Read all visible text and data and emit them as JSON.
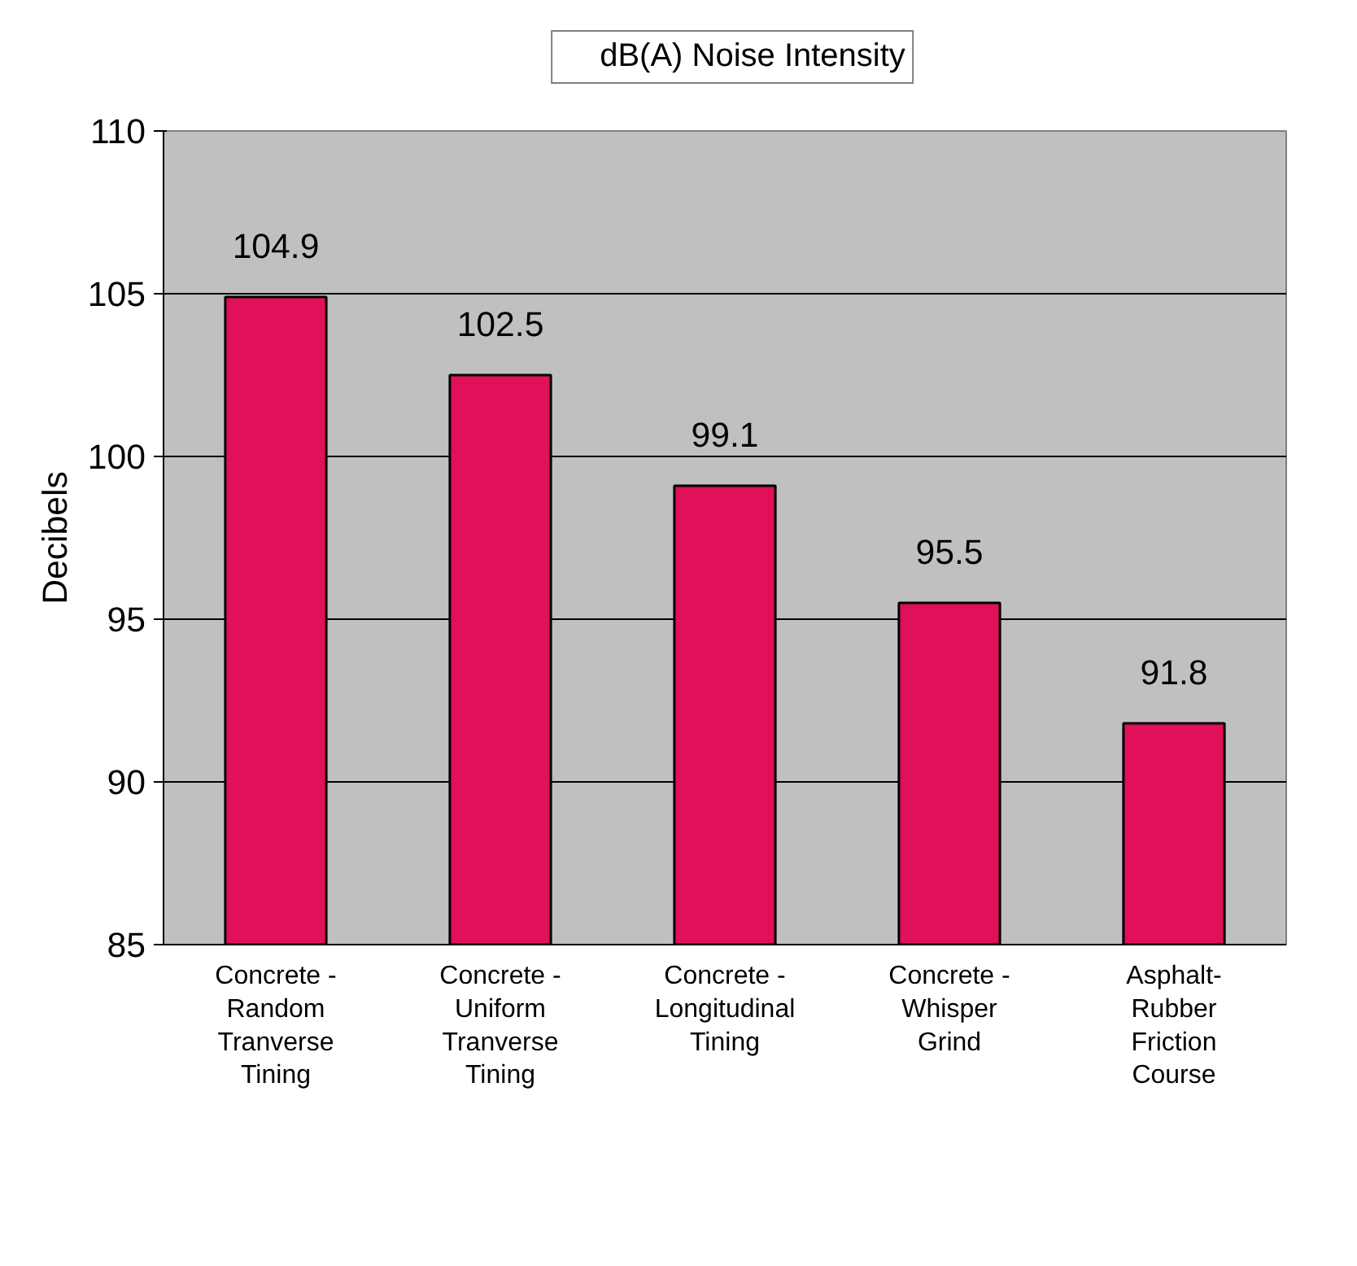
{
  "chart_data": {
    "type": "bar",
    "ylabel": "Decibels",
    "categories": [
      "Concrete -\nRandom\nTranverse\nTining",
      "Concrete -\nUniform\nTranverse\nTining",
      "Concrete -\nLongitudinal\nTining",
      "Concrete -\nWhisper\nGrind",
      "Asphalt-\nRubber\nFriction\nCourse"
    ],
    "series": [
      {
        "name": "dB(A) Noise Intensity",
        "color": "#e0105a",
        "values": [
          104.9,
          102.5,
          99.1,
          95.5,
          91.8
        ]
      }
    ],
    "ylim": [
      85,
      110
    ],
    "yticks": [
      85,
      90,
      95,
      100,
      105,
      110
    ],
    "grid": "y",
    "legend": "top",
    "data_labels": true
  }
}
